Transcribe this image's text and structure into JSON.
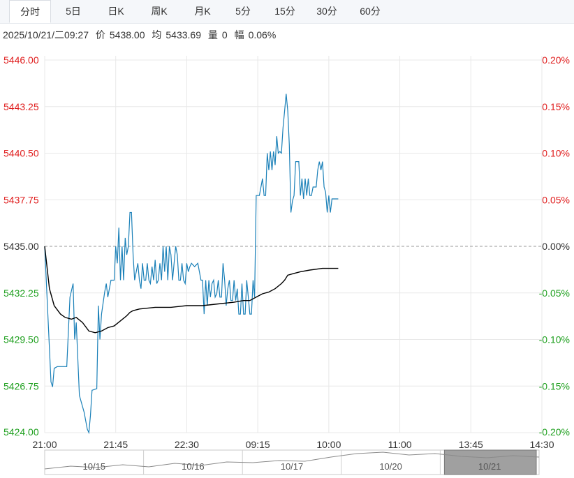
{
  "tabs": [
    "分时",
    "5日",
    "日K",
    "周K",
    "月K",
    "5分",
    "15分",
    "30分",
    "60分"
  ],
  "active_tab": 0,
  "info": {
    "datetime": "2025/10/21/二09:27",
    "price_label": "价",
    "price": "5438.00",
    "avg_label": "均",
    "avg": "5433.69",
    "vol_label": "量",
    "vol": "0",
    "amp_label": "幅",
    "amp": "0.06%"
  },
  "colors": {
    "up": "#e02020",
    "down": "#20a020",
    "price_line": "#1a80b8",
    "avg_line": "#000000",
    "grid": "#e8e8e8",
    "navigator": "#8a8a8a"
  },
  "chart_data": {
    "type": "line",
    "prev_close": 5435.0,
    "ylim": [
      5424.0,
      5446.0
    ],
    "y_ticks_left": [
      "5446.00",
      "5443.25",
      "5440.50",
      "5437.75",
      "5435.00",
      "5432.25",
      "5429.50",
      "5426.75",
      "5424.00"
    ],
    "y_ticks_right": [
      "0.20%",
      "0.15%",
      "0.10%",
      "0.05%",
      "0.00%",
      "-0.05%",
      "-0.10%",
      "-0.15%",
      "-0.20%"
    ],
    "x_ticks": [
      "21:00",
      "21:45",
      "22:30",
      "09:15",
      "10:00",
      "11:00",
      "13:45",
      "14:30"
    ],
    "total_minutes": 315,
    "series": [
      {
        "key": "price",
        "points": [
          [
            0,
            5435.0
          ],
          [
            2,
            5431.0
          ],
          [
            4,
            5427.0
          ],
          [
            5,
            5426.7
          ],
          [
            6,
            5427.8
          ],
          [
            8,
            5427.9
          ],
          [
            10,
            5427.9
          ],
          [
            12,
            5427.9
          ],
          [
            14,
            5427.9
          ],
          [
            16,
            5432.0
          ],
          [
            18,
            5432.8
          ],
          [
            19,
            5429.5
          ],
          [
            20,
            5430.5
          ],
          [
            22,
            5426.2
          ],
          [
            25,
            5425.2
          ],
          [
            27,
            5424.2
          ],
          [
            28,
            5424.0
          ],
          [
            29,
            5425.0
          ],
          [
            30,
            5426.5
          ],
          [
            33,
            5426.6
          ],
          [
            34,
            5431.5
          ],
          [
            35,
            5429.5
          ],
          [
            36,
            5431.0
          ],
          [
            38,
            5432.3
          ],
          [
            39,
            5432.8
          ],
          [
            40,
            5432.0
          ],
          [
            42,
            5433.0
          ],
          [
            44,
            5433.0
          ],
          [
            45,
            5435.0
          ],
          [
            46,
            5434.0
          ],
          [
            47,
            5436.1
          ],
          [
            48,
            5433.0
          ],
          [
            49,
            5435.0
          ],
          [
            50,
            5433.0
          ],
          [
            51,
            5435.5
          ],
          [
            52,
            5434.5
          ],
          [
            53,
            5435.0
          ],
          [
            54,
            5437.0
          ],
          [
            55,
            5437.0
          ],
          [
            56,
            5434.5
          ],
          [
            57,
            5433.0
          ],
          [
            59,
            5434.0
          ],
          [
            60,
            5433.0
          ],
          [
            61,
            5432.5
          ],
          [
            62,
            5434.0
          ],
          [
            63,
            5433.0
          ],
          [
            64,
            5433.0
          ],
          [
            65,
            5434.0
          ],
          [
            66,
            5433.0
          ],
          [
            67,
            5432.8
          ],
          [
            68,
            5433.8
          ],
          [
            69,
            5433.0
          ],
          [
            70,
            5434.2
          ],
          [
            71,
            5432.8
          ],
          [
            72,
            5433.0
          ],
          [
            73,
            5434.0
          ],
          [
            74,
            5433.0
          ],
          [
            75,
            5435.0
          ],
          [
            76,
            5433.5
          ],
          [
            77,
            5435.0
          ],
          [
            78,
            5433.0
          ],
          [
            79,
            5435.0
          ],
          [
            80,
            5434.5
          ],
          [
            81,
            5433.0
          ],
          [
            82,
            5434.0
          ],
          [
            83,
            5435.0
          ],
          [
            84,
            5434.5
          ],
          [
            85,
            5433.0
          ],
          [
            86,
            5433.0
          ],
          [
            87,
            5434.0
          ],
          [
            88,
            5433.0
          ],
          [
            89,
            5432.8
          ],
          [
            90,
            5434.0
          ],
          [
            91,
            5433.5
          ],
          [
            92,
            5433.8
          ],
          [
            93,
            5434.0
          ],
          [
            95,
            5433.8
          ],
          [
            97,
            5434.0
          ],
          [
            99,
            5433.0
          ],
          [
            100,
            5433.0
          ],
          [
            101,
            5431.0
          ],
          [
            102,
            5433.0
          ],
          [
            103,
            5431.5
          ],
          [
            104,
            5433.0
          ],
          [
            105,
            5432.0
          ],
          [
            106,
            5432.8
          ],
          [
            107,
            5433.0
          ],
          [
            108,
            5432.0
          ],
          [
            109,
            5432.2
          ],
          [
            110,
            5433.0
          ],
          [
            111,
            5432.0
          ],
          [
            112,
            5432.0
          ],
          [
            113,
            5434.0
          ],
          [
            114,
            5433.0
          ],
          [
            115,
            5431.5
          ],
          [
            116,
            5432.5
          ],
          [
            117,
            5433.0
          ],
          [
            118,
            5431.8
          ],
          [
            119,
            5431.8
          ],
          [
            120,
            5433.0
          ],
          [
            121,
            5431.8
          ],
          [
            122,
            5432.5
          ],
          [
            123,
            5431.0
          ],
          [
            124,
            5431.0
          ],
          [
            125,
            5432.8
          ],
          [
            126,
            5431.0
          ],
          [
            127,
            5431.0
          ],
          [
            128,
            5433.0
          ],
          [
            129,
            5432.0
          ],
          [
            130,
            5431.0
          ],
          [
            131,
            5431.0
          ],
          [
            132,
            5433.0
          ],
          [
            133,
            5432.0
          ],
          [
            134,
            5438.0
          ],
          [
            136,
            5438.0
          ],
          [
            137,
            5438.5
          ],
          [
            138,
            5439.0
          ],
          [
            139,
            5438.0
          ],
          [
            140,
            5438.0
          ],
          [
            141,
            5440.5
          ],
          [
            142,
            5439.5
          ],
          [
            143,
            5440.6
          ],
          [
            144,
            5439.5
          ],
          [
            145,
            5440.6
          ],
          [
            146,
            5439.8
          ],
          [
            147,
            5441.5
          ],
          [
            148,
            5440.5
          ],
          [
            149,
            5440.6
          ],
          [
            150,
            5440.5
          ],
          [
            151,
            5442.0
          ],
          [
            152,
            5443.0
          ],
          [
            153,
            5444.0
          ],
          [
            154,
            5443.0
          ],
          [
            155,
            5441.0
          ],
          [
            156,
            5437.0
          ],
          [
            157,
            5437.7
          ],
          [
            158,
            5438.0
          ],
          [
            159,
            5440.0
          ],
          [
            160,
            5440.0
          ],
          [
            161,
            5440.0
          ],
          [
            162,
            5438.0
          ],
          [
            163,
            5439.0
          ],
          [
            164,
            5437.8
          ],
          [
            165,
            5439.0
          ],
          [
            166,
            5438.0
          ],
          [
            167,
            5439.0
          ],
          [
            168,
            5438.0
          ],
          [
            169,
            5438.0
          ],
          [
            170,
            5438.5
          ],
          [
            171,
            5438.5
          ],
          [
            172,
            5438.5
          ],
          [
            173,
            5439.5
          ],
          [
            174,
            5440.0
          ],
          [
            175,
            5439.5
          ],
          [
            176,
            5440.0
          ],
          [
            177,
            5438.5
          ],
          [
            178,
            5438.2
          ],
          [
            179,
            5437.0
          ],
          [
            180,
            5438.0
          ],
          [
            181,
            5437.0
          ],
          [
            182,
            5437.8
          ],
          [
            183,
            5437.8
          ],
          [
            186,
            5437.8
          ]
        ]
      },
      {
        "key": "average",
        "points": [
          [
            0,
            5435.0
          ],
          [
            3,
            5432.5
          ],
          [
            6,
            5431.5
          ],
          [
            10,
            5431.0
          ],
          [
            13,
            5430.8
          ],
          [
            17,
            5430.7
          ],
          [
            20,
            5430.8
          ],
          [
            24,
            5430.5
          ],
          [
            28,
            5430.0
          ],
          [
            32,
            5429.9
          ],
          [
            36,
            5430.0
          ],
          [
            40,
            5430.2
          ],
          [
            44,
            5430.3
          ],
          [
            48,
            5430.6
          ],
          [
            52,
            5430.9
          ],
          [
            54,
            5431.1
          ],
          [
            56,
            5431.2
          ],
          [
            60,
            5431.3
          ],
          [
            70,
            5431.4
          ],
          [
            80,
            5431.4
          ],
          [
            90,
            5431.5
          ],
          [
            100,
            5431.5
          ],
          [
            110,
            5431.6
          ],
          [
            120,
            5431.7
          ],
          [
            126,
            5431.8
          ],
          [
            130,
            5431.8
          ],
          [
            134,
            5432.0
          ],
          [
            138,
            5432.2
          ],
          [
            142,
            5432.3
          ],
          [
            146,
            5432.5
          ],
          [
            150,
            5432.8
          ],
          [
            152,
            5433.0
          ],
          [
            154,
            5433.3
          ],
          [
            158,
            5433.4
          ],
          [
            162,
            5433.5
          ],
          [
            168,
            5433.6
          ],
          [
            176,
            5433.7
          ],
          [
            186,
            5433.7
          ]
        ]
      }
    ]
  },
  "navigator": {
    "labels": [
      "10/15",
      "10/16",
      "10/17",
      "10/20",
      "10/21"
    ]
  }
}
